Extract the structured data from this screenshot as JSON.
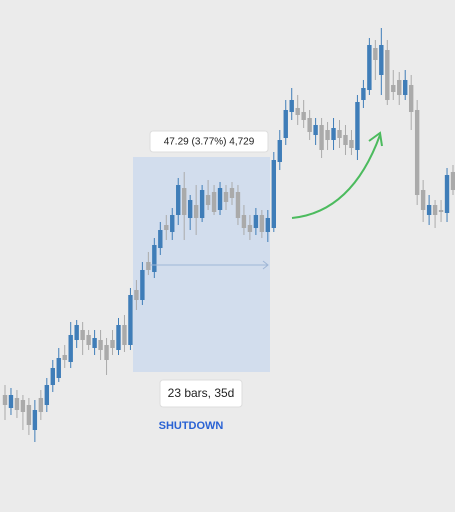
{
  "chart_data": {
    "type": "candlestick",
    "open": [
      117,
      104,
      114,
      112,
      107,
      82,
      114,
      107,
      127,
      134,
      157,
      150,
      172,
      182,
      177,
      164,
      172,
      167,
      172,
      162,
      187,
      167,
      222,
      212,
      250,
      240,
      264,
      287,
      280,
      297,
      324,
      294,
      307,
      294,
      317,
      320,
      302,
      320,
      324,
      320,
      297,
      287,
      284,
      297,
      280,
      284,
      350,
      374,
      400,
      404,
      400,
      394,
      377,
      387,
      382,
      372,
      382,
      377,
      372,
      362,
      412,
      422,
      464,
      437,
      462,
      427,
      432,
      417,
      427,
      402,
      322,
      297,
      307,
      302,
      299,
      340
    ],
    "high": [
      127,
      124,
      122,
      117,
      114,
      112,
      122,
      134,
      152,
      164,
      167,
      190,
      192,
      190,
      182,
      182,
      182,
      174,
      182,
      194,
      197,
      224,
      232,
      250,
      260,
      274,
      290,
      297,
      304,
      334,
      340,
      317,
      327,
      327,
      332,
      327,
      330,
      327,
      330,
      327,
      307,
      297,
      304,
      302,
      302,
      360,
      382,
      412,
      424,
      417,
      412,
      402,
      394,
      394,
      390,
      394,
      392,
      387,
      382,
      417,
      432,
      474,
      472,
      484,
      472,
      442,
      440,
      442,
      437,
      412,
      332,
      317,
      312,
      312,
      344,
      347
    ],
    "low": [
      92,
      97,
      94,
      82,
      77,
      70,
      92,
      100,
      120,
      130,
      144,
      144,
      164,
      157,
      162,
      157,
      152,
      137,
      157,
      157,
      160,
      162,
      202,
      207,
      237,
      234,
      257,
      272,
      272,
      287,
      272,
      282,
      277,
      290,
      302,
      297,
      297,
      302,
      307,
      287,
      277,
      272,
      277,
      274,
      270,
      280,
      342,
      367,
      392,
      387,
      384,
      372,
      367,
      354,
      362,
      362,
      364,
      357,
      357,
      352,
      404,
      417,
      432,
      417,
      407,
      412,
      407,
      412,
      382,
      307,
      290,
      287,
      284,
      290,
      290,
      317
    ],
    "close": [
      107,
      117,
      102,
      100,
      87,
      102,
      100,
      127,
      144,
      154,
      152,
      177,
      187,
      172,
      167,
      174,
      162,
      152,
      164,
      187,
      167,
      217,
      212,
      242,
      242,
      267,
      282,
      282,
      297,
      327,
      297,
      312,
      294,
      322,
      307,
      300,
      324,
      310,
      314,
      294,
      284,
      280,
      297,
      280,
      294,
      352,
      372,
      402,
      412,
      397,
      392,
      380,
      387,
      362,
      372,
      384,
      374,
      367,
      364,
      410,
      424,
      467,
      452,
      467,
      412,
      420,
      417,
      432,
      400,
      317,
      302,
      307,
      297,
      300,
      337,
      322
    ],
    "ylim": [
      0,
      512
    ],
    "up_color": "#3f7db8",
    "down_color": "#aaaaaa",
    "measure_label": "47.29 (3.77%) 4,729",
    "range_label": "23 bars, 35d",
    "event_label": "SHUTDOWN"
  }
}
